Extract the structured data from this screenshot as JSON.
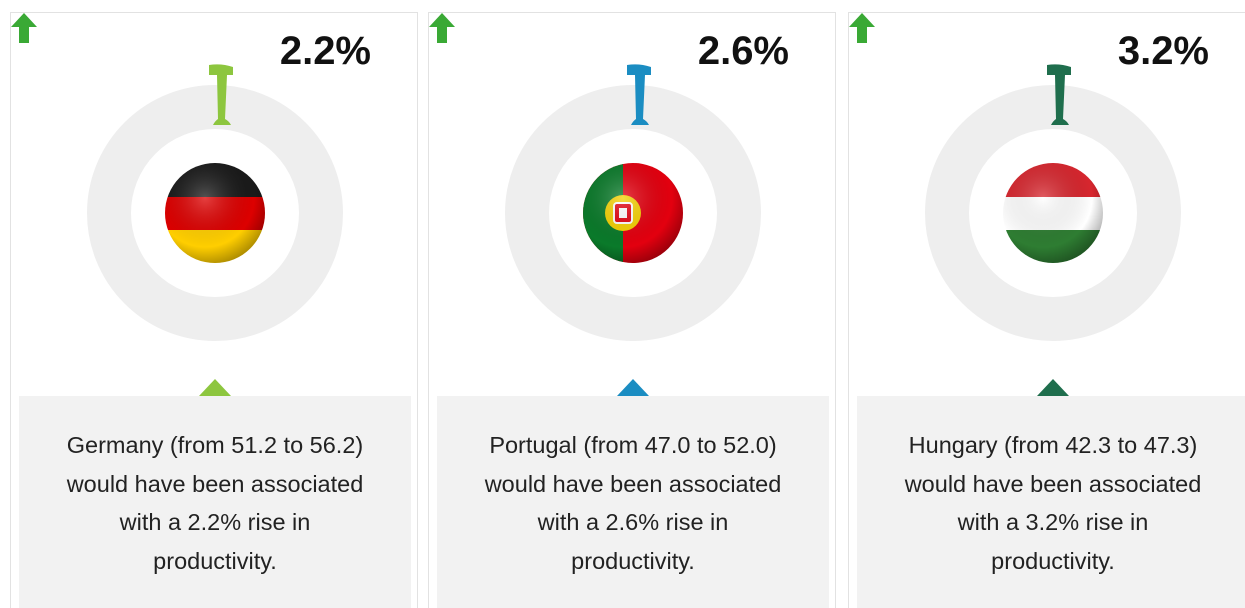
{
  "cards": [
    {
      "value": "2.2%",
      "text": "Germany (from 51.2 to 56.2) would have been associated with a 2.2% rise in productivity.",
      "color": "#8dc63f"
    },
    {
      "value": "2.6%",
      "text": "Portugal (from 47.0 to 52.0) would have been associated with a 2.6% rise in productivity.",
      "color": "#1b8dc2"
    },
    {
      "value": "3.2%",
      "text": "Hungary (from 42.3 to 47.3) would have been associated with a 3.2% rise in productivity.",
      "color": "#1f6e4d"
    }
  ]
}
